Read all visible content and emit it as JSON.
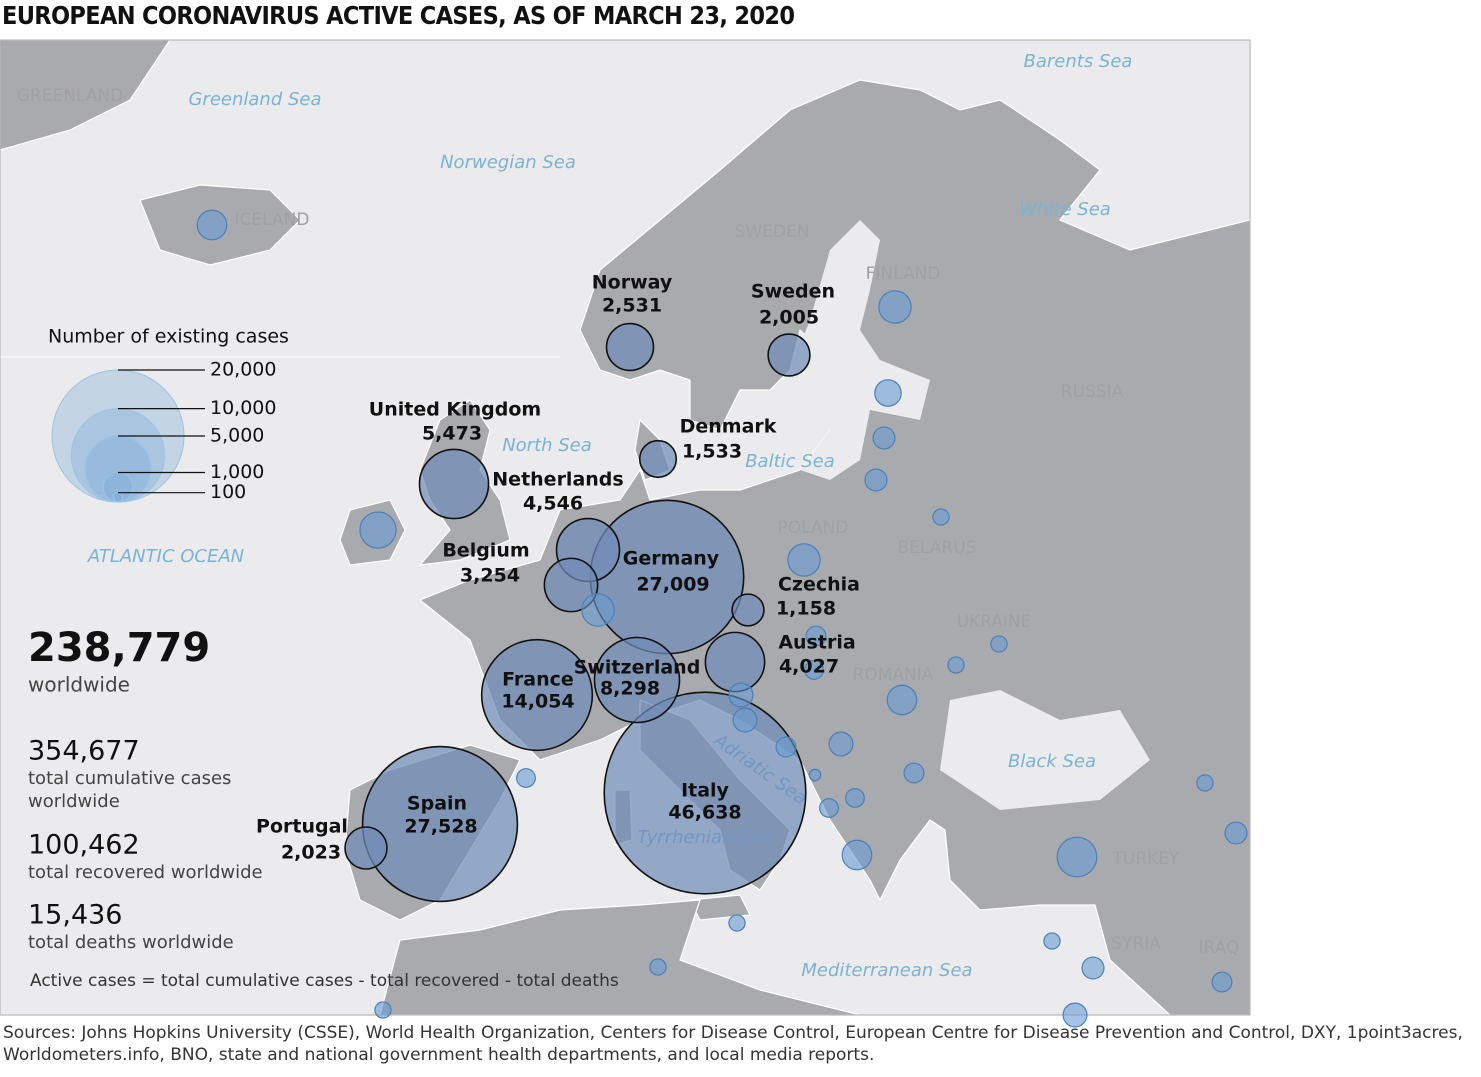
{
  "title": "EUROPEAN CORONAVIRUS ACTIVE CASES, AS OF MARCH 23, 2020",
  "sea_labels": [
    "Barents Sea",
    "Greenland Sea",
    "Norwegian Sea",
    "White Sea",
    "North Sea",
    "Baltic Sea",
    "ATLANTIC OCEAN",
    "Adriatic Sea",
    "Tyrrhenian Sea",
    "Black Sea",
    "Mediterranean Sea"
  ],
  "country_labels": [
    "GREENLAND",
    "ICELAND",
    "SWEDEN",
    "FINLAND",
    "RUSSIA",
    "POLAND",
    "BELARUS",
    "UKRAINE",
    "ROMANIA",
    "TURKEY",
    "SYRIA",
    "IRAQ"
  ],
  "legend": {
    "title": "Number of existing cases",
    "sizes": [
      {
        "value": 20000,
        "label": "20,000"
      },
      {
        "value": 10000,
        "label": "10,000"
      },
      {
        "value": 5000,
        "label": "5,000"
      },
      {
        "value": 1000,
        "label": "1,000"
      },
      100
    ]
  },
  "bubbles": {
    "names": [
      "Norway",
      "Sweden",
      "Denmark",
      "United Kingdom",
      "Netherlands",
      "Belgium",
      "Germany",
      "Czechia",
      "Austria",
      "Switzerland",
      "France",
      "Italy",
      "Spain",
      "Portugal",
      null,
      null,
      null,
      null,
      null,
      null,
      null,
      null,
      null,
      null,
      null,
      null,
      null,
      null,
      null,
      null,
      null,
      null,
      null,
      null,
      null,
      null,
      null,
      null,
      null,
      null,
      null,
      null,
      null,
      null,
      null,
      null,
      null,
      null
    ],
    "values": [
      2531,
      2005,
      1533,
      5473,
      4546,
      3254,
      27009,
      1158,
      4027,
      8298,
      14054,
      46638,
      27528,
      2023,
      1000,
      1200,
      1500,
      800,
      550,
      550,
      300,
      1200,
      1200,
      300,
      450,
      400,
      650,
      650,
      1000,
      300,
      650,
      450,
      450,
      150,
      400,
      400,
      1000,
      1800,
      400,
      300,
      300,
      300,
      300,
      550,
      650,
      300,
      550,
      450
    ],
    "value_labels": [
      "2,531",
      "2,005",
      "1,533",
      "5,473",
      "4,546",
      "3,254",
      "27,009",
      "1,158",
      "4,027",
      "8,298",
      "14,054",
      "46,638",
      "27,528",
      "2,023",
      null,
      null,
      null,
      null,
      null,
      null,
      null,
      null,
      null,
      null,
      null,
      null,
      null,
      null,
      null,
      null,
      null,
      null,
      null,
      null,
      null,
      null,
      null,
      null,
      null,
      null,
      null,
      null,
      null,
      null,
      null,
      null,
      null,
      null
    ]
  },
  "stats": [
    {
      "value": "238,779",
      "label": "worldwide"
    },
    {
      "value": "354,677",
      "label": "total cumulative cases worldwide"
    },
    {
      "value": "100,462",
      "label": "total recovered worldwide"
    },
    {
      "value": "15,436",
      "label": "total deaths worldwide"
    }
  ],
  "note": "Active cases = total cumulative cases - total recovered - total deaths",
  "sources": [
    "Sources: Johns Hopkins University (CSSE), World Health Organization, Centers for Disease Control, European Centre for Disease Prevention and Control, DXY,  1point3acres,",
    "Worldometers.info, BNO, state and national government health departments, and local media reports."
  ]
}
